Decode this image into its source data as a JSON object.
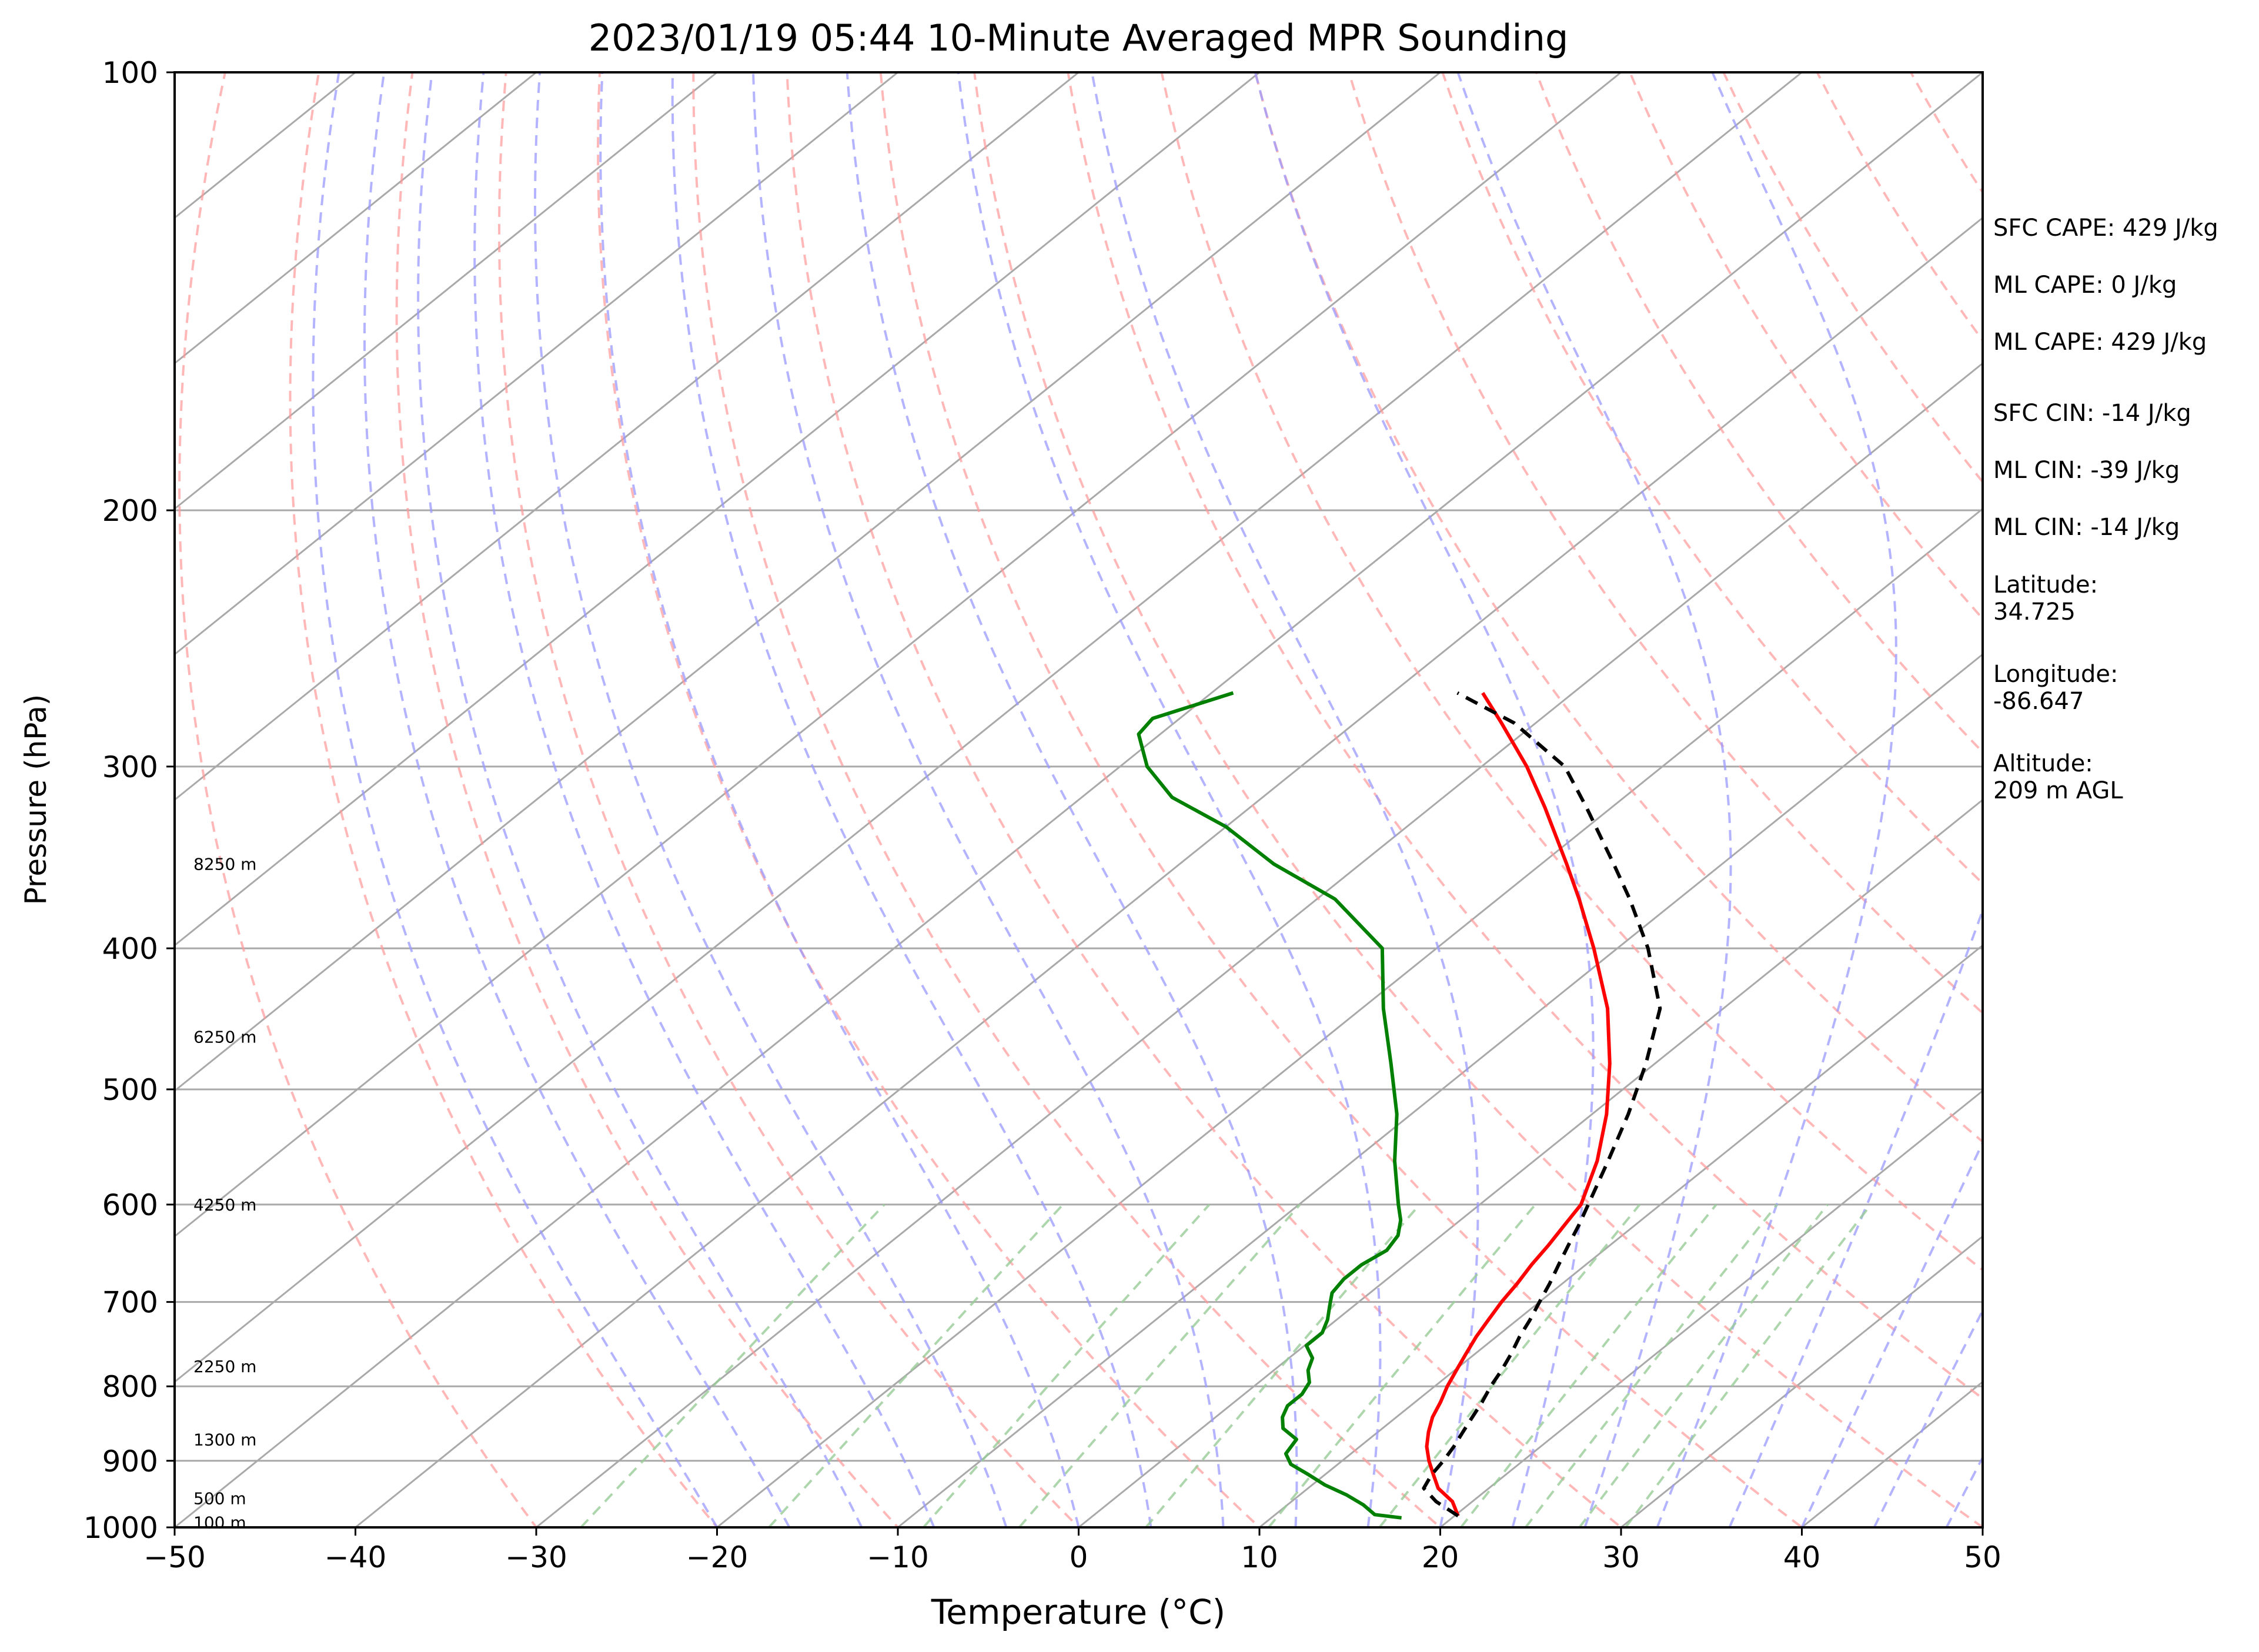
{
  "chart_data": {
    "type": "line",
    "title": "2023/01/19 05:44 10-Minute Averaged MPR Sounding",
    "xlabel": "Temperature (°C)",
    "ylabel": "Pressure (hPa)",
    "xlim": [
      -50,
      50
    ],
    "ylim": [
      1000,
      100
    ],
    "y_scale": "log",
    "x_ticks": [
      -50,
      -40,
      -30,
      -20,
      -10,
      0,
      10,
      20,
      30,
      40,
      50
    ],
    "x_tick_labels": [
      "−50",
      "−40",
      "−30",
      "−20",
      "−10",
      "0",
      "10",
      "20",
      "30",
      "40",
      "50"
    ],
    "y_ticks": [
      1000,
      900,
      800,
      700,
      600,
      500,
      400,
      300,
      200,
      100
    ],
    "y_tick_labels": [
      "1000",
      "900",
      "800",
      "700",
      "600",
      "500",
      "400",
      "300",
      "200",
      "100"
    ],
    "skew": 1.0,
    "grid": true,
    "colors": {
      "temperature": "#ff0000",
      "dewpoint": "#008000",
      "parcel": "#000000",
      "isotherms": "#a9a9a9",
      "dry_adiabats": "#ff9999",
      "moist_adiabats": "#9999ff",
      "mixing_ratio": "#99cc99"
    },
    "series": [
      {
        "key": "temperature",
        "pressure": [
          982,
          960,
          940,
          920,
          900,
          880,
          860,
          840,
          820,
          800,
          780,
          760,
          740,
          720,
          700,
          680,
          660,
          640,
          620,
          600,
          560,
          520,
          480,
          440,
          400,
          370,
          350,
          320,
          300,
          280,
          267
        ],
        "values": [
          20.2,
          18.9,
          17.2,
          16.0,
          14.8,
          13.7,
          12.8,
          12.0,
          11.4,
          10.7,
          10.1,
          9.5,
          8.9,
          8.4,
          7.9,
          7.5,
          7.0,
          6.6,
          6.1,
          5.6,
          3.5,
          0.8,
          -2.5,
          -6.4,
          -11.3,
          -15.5,
          -18.6,
          -23.7,
          -27.5,
          -31.9,
          -35.0
        ]
      },
      {
        "key": "dewpoint",
        "pressure": [
          985,
          980,
          965,
          950,
          935,
          920,
          905,
          890,
          870,
          855,
          840,
          825,
          810,
          795,
          780,
          765,
          750,
          735,
          720,
          705,
          690,
          675,
          660,
          645,
          630,
          615,
          600,
          560,
          520,
          480,
          440,
          400,
          370,
          350,
          330,
          315,
          300,
          285,
          278,
          267
        ],
        "values": [
          17.2,
          15.5,
          14.2,
          12.6,
          10.7,
          9.1,
          7.4,
          6.4,
          6.0,
          4.5,
          3.7,
          3.2,
          3.2,
          2.8,
          1.9,
          1.3,
          0.1,
          0.1,
          -0.5,
          -1.3,
          -2.1,
          -2.4,
          -2.4,
          -2.0,
          -2.4,
          -3.3,
          -4.5,
          -7.7,
          -10.8,
          -14.6,
          -18.8,
          -23.0,
          -29.0,
          -34.8,
          -40.0,
          -45.0,
          -48.5,
          -51.2,
          -51.5,
          -48.8
        ]
      },
      {
        "key": "parcel",
        "pressure": [
          982,
          960,
          940,
          920,
          900,
          880,
          860,
          840,
          820,
          800,
          780,
          760,
          740,
          720,
          700,
          680,
          660,
          640,
          620,
          600,
          560,
          520,
          480,
          440,
          400,
          370,
          350,
          320,
          300,
          280,
          267
        ],
        "values": [
          20.2,
          18.0,
          16.4,
          15.9,
          15.6,
          15.2,
          14.7,
          14.2,
          13.7,
          13.1,
          12.6,
          12.0,
          11.3,
          10.7,
          10.0,
          9.3,
          8.5,
          7.7,
          6.9,
          6.0,
          4.1,
          2.0,
          -0.5,
          -3.5,
          -8.3,
          -12.7,
          -16.0,
          -21.4,
          -25.4,
          -31.2,
          -36.4
        ]
      }
    ],
    "height_labels": [
      {
        "label": "100 m",
        "pressure": 992
      },
      {
        "label": "500 m",
        "pressure": 955
      },
      {
        "label": "1300 m",
        "pressure": 870
      },
      {
        "label": "2250 m",
        "pressure": 775
      },
      {
        "label": "4250 m",
        "pressure": 600
      },
      {
        "label": "6250 m",
        "pressure": 460
      },
      {
        "label": "8250 m",
        "pressure": 350
      }
    ]
  },
  "sidebar": {
    "sfc_cape": "SFC CAPE: 429 J/kg",
    "ml_cape_1": "ML CAPE: 0 J/kg",
    "ml_cape_2": "ML CAPE: 429 J/kg",
    "sfc_cin": "SFC CIN: -14 J/kg",
    "ml_cin_1": "ML CIN: -39 J/kg",
    "ml_cin_2": "ML CIN: -14 J/kg",
    "latitude": "Latitude:\n34.725",
    "longitude": "Longitude:\n-86.647",
    "altitude": "Altitude:\n209 m AGL"
  }
}
